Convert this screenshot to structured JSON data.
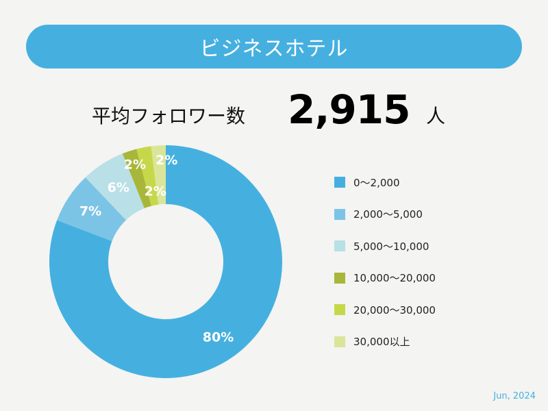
{
  "header": {
    "title": "ビジネスホテル"
  },
  "stat": {
    "label": "平均フォロワー数",
    "value": "2,915",
    "unit": "人"
  },
  "footer": {
    "date": "Jun, 2024"
  },
  "chart_data": {
    "type": "pie",
    "title": "",
    "donut": true,
    "legend_position": "right",
    "categories": [
      "0〜2,000",
      "2,000〜5,000",
      "5,000〜10,000",
      "10,000〜20,000",
      "20,000〜30,000",
      "30,000以上"
    ],
    "values": [
      80,
      7,
      6,
      2,
      2,
      2
    ],
    "labels": [
      "80%",
      "7%",
      "6%",
      "2%",
      "2%",
      "2%"
    ],
    "colors": [
      "#45b0e0",
      "#7cc4e6",
      "#b9e0e6",
      "#a8b73a",
      "#c6d84a",
      "#dbe59a"
    ]
  }
}
